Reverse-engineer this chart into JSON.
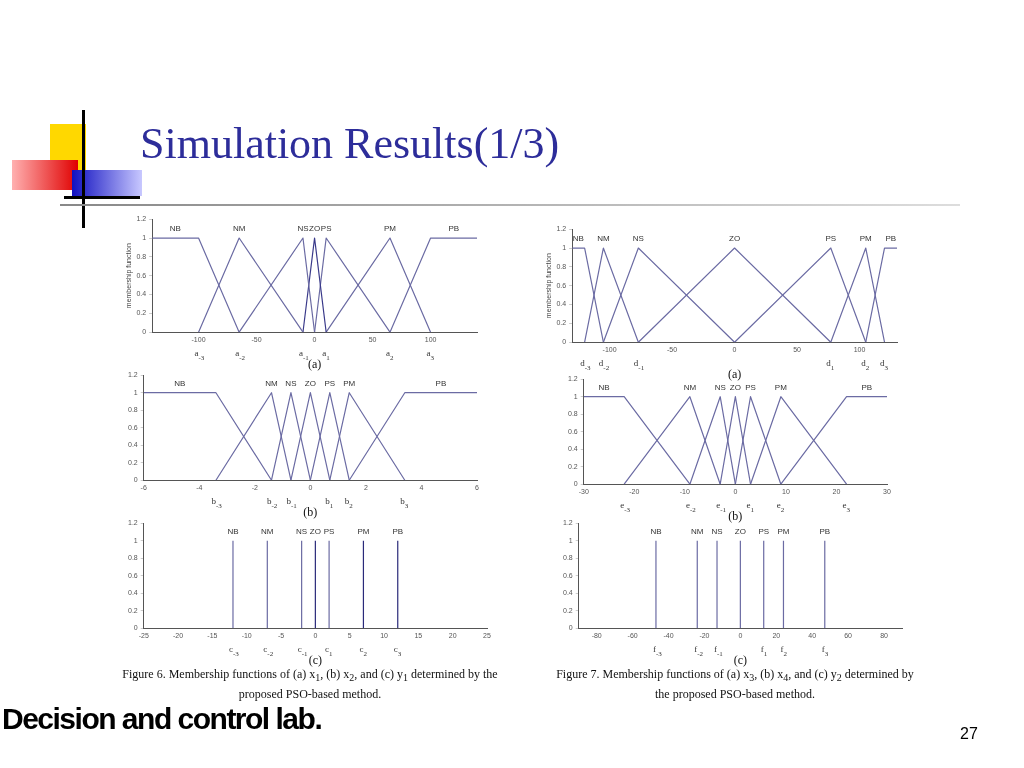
{
  "chart_data": [
    {
      "type": "line",
      "title": "Simulation Results(1/3)",
      "xlabel": "(a)",
      "ylabel": "membership function",
      "xlim": [
        -140,
        140
      ],
      "xticks": [
        -100,
        -50,
        0,
        50,
        100
      ],
      "ylim": [
        0,
        1.2
      ],
      "yticks": [
        0,
        0.2,
        0.4,
        0.6,
        0.8,
        1,
        1.2
      ],
      "series": [
        {
          "name": "NB",
          "color": "#6b6ba3",
          "x": [
            -140,
            -100,
            -65
          ],
          "values": [
            1,
            1,
            0
          ]
        },
        {
          "name": "NM",
          "color": "#6b6ba3",
          "x": [
            -100,
            -65,
            -10
          ],
          "values": [
            0,
            1,
            0
          ]
        },
        {
          "name": "NS",
          "color": "#6b6ba3",
          "x": [
            -65,
            -10,
            0
          ],
          "values": [
            0,
            1,
            0
          ]
        },
        {
          "name": "ZO",
          "color": "#3a3a8a",
          "x": [
            -10,
            0,
            10
          ],
          "values": [
            0,
            1,
            0
          ]
        },
        {
          "name": "PS",
          "color": "#6b6ba3",
          "x": [
            0,
            10,
            65
          ],
          "values": [
            0,
            1,
            0
          ]
        },
        {
          "name": "PM",
          "color": "#6b6ba3",
          "x": [
            10,
            65,
            100
          ],
          "values": [
            0,
            1,
            0
          ]
        },
        {
          "name": "PB",
          "color": "#6b6ba3",
          "x": [
            65,
            100,
            140
          ],
          "values": [
            0,
            1,
            1
          ]
        }
      ],
      "annotations": [
        {
          "text": "a$_{-3}$",
          "x": -100,
          "y": 0
        },
        {
          "text": "a$_{-2}$",
          "x": -65,
          "y": 0
        },
        {
          "text": "a$_{-1}$",
          "x": -10,
          "y": 0
        },
        {
          "text": "a$_{1}$",
          "x": 10,
          "y": 0
        },
        {
          "text": "a$_{2}$",
          "x": 65,
          "y": 0
        },
        {
          "text": "a$_{3}$",
          "x": 100,
          "y": 0
        }
      ]
    },
    {
      "type": "line",
      "xlabel": "(a)",
      "ylabel": "membership function",
      "xlim": [
        -130,
        130
      ],
      "xticks": [
        -100,
        -50,
        0,
        50,
        100
      ],
      "ylim": [
        0,
        1.2
      ],
      "yticks": [
        0,
        0.2,
        0.4,
        0.6,
        0.8,
        1,
        1.2
      ],
      "series": [
        {
          "name": "NB",
          "color": "#6b6ba3",
          "x": [
            -130,
            -120,
            -105
          ],
          "values": [
            1,
            1,
            0
          ]
        },
        {
          "name": "NM",
          "color": "#6b6ba3",
          "x": [
            -120,
            -105,
            -77
          ],
          "values": [
            0,
            1,
            0
          ]
        },
        {
          "name": "NS",
          "color": "#6b6ba3",
          "x": [
            -105,
            -77,
            0
          ],
          "values": [
            0,
            1,
            0
          ]
        },
        {
          "name": "ZO",
          "color": "#6b6ba3",
          "x": [
            -77,
            0,
            77
          ],
          "values": [
            0,
            1,
            0
          ]
        },
        {
          "name": "PS",
          "color": "#6b6ba3",
          "x": [
            0,
            77,
            105
          ],
          "values": [
            0,
            1,
            0
          ]
        },
        {
          "name": "PM",
          "color": "#6b6ba3",
          "x": [
            77,
            105,
            120
          ],
          "values": [
            0,
            1,
            0
          ]
        },
        {
          "name": "PB",
          "color": "#6b6ba3",
          "x": [
            105,
            120,
            130
          ],
          "values": [
            0,
            1,
            1
          ]
        }
      ],
      "annotations": [
        {
          "text": "d$_{-3}$",
          "x": -120,
          "y": 0
        },
        {
          "text": "d$_{-2}$",
          "x": -105,
          "y": 0
        },
        {
          "text": "d$_{-1}$",
          "x": -77,
          "y": 0
        },
        {
          "text": "d$_{1}$",
          "x": 77,
          "y": 0
        },
        {
          "text": "d$_{2}$",
          "x": 105,
          "y": 0
        },
        {
          "text": "d$_{3}$",
          "x": 120,
          "y": 0
        }
      ]
    },
    {
      "type": "line",
      "xlabel": "(b)",
      "xlim": [
        -6,
        6
      ],
      "xticks": [
        -6,
        -4,
        -2,
        0,
        2,
        4,
        6
      ],
      "ylim": [
        0,
        1.2
      ],
      "yticks": [
        0,
        0.2,
        0.4,
        0.6,
        0.8,
        1,
        1.2
      ],
      "series": [
        {
          "name": "NB",
          "color": "#6b6ba3",
          "x": [
            -6,
            -3.4,
            -1.4
          ],
          "values": [
            1,
            1,
            0
          ]
        },
        {
          "name": "NM",
          "color": "#6b6ba3",
          "x": [
            -3.4,
            -1.4,
            -0.7
          ],
          "values": [
            0,
            1,
            0
          ]
        },
        {
          "name": "NS",
          "color": "#6b6ba3",
          "x": [
            -1.4,
            -0.7,
            0
          ],
          "values": [
            0,
            1,
            0
          ]
        },
        {
          "name": "ZO",
          "color": "#6b6ba3",
          "x": [
            -0.7,
            0,
            0.7
          ],
          "values": [
            0,
            1,
            0
          ]
        },
        {
          "name": "PS",
          "color": "#6b6ba3",
          "x": [
            0,
            0.7,
            1.4
          ],
          "values": [
            0,
            1,
            0
          ]
        },
        {
          "name": "PM",
          "color": "#6b6ba3",
          "x": [
            0.7,
            1.4,
            3.4
          ],
          "values": [
            0,
            1,
            0
          ]
        },
        {
          "name": "PB",
          "color": "#6b6ba3",
          "x": [
            1.4,
            3.4,
            6
          ],
          "values": [
            0,
            1,
            1
          ]
        }
      ],
      "annotations": [
        {
          "text": "b$_{-3}$",
          "x": -3.4,
          "y": 0
        },
        {
          "text": "b$_{-2}$",
          "x": -1.4,
          "y": 0
        },
        {
          "text": "b$_{-1}$",
          "x": -0.7,
          "y": 0
        },
        {
          "text": "b$_{1}$",
          "x": 0.7,
          "y": 0
        },
        {
          "text": "b$_{2}$",
          "x": 1.4,
          "y": 0
        },
        {
          "text": "b$_{3}$",
          "x": 3.4,
          "y": 0
        }
      ]
    },
    {
      "type": "line",
      "xlabel": "(b)",
      "xlim": [
        -30,
        30
      ],
      "xticks": [
        -30,
        -20,
        -10,
        0,
        10,
        20,
        30
      ],
      "ylim": [
        0,
        1.2
      ],
      "yticks": [
        0,
        0.2,
        0.4,
        0.6,
        0.8,
        1,
        1.2
      ],
      "series": [
        {
          "name": "NB",
          "color": "#6b6ba3",
          "x": [
            -30,
            -22,
            -9
          ],
          "values": [
            1,
            1,
            0
          ]
        },
        {
          "name": "NM",
          "color": "#6b6ba3",
          "x": [
            -22,
            -9,
            -3
          ],
          "values": [
            0,
            1,
            0
          ]
        },
        {
          "name": "NS",
          "color": "#6b6ba3",
          "x": [
            -9,
            -3,
            0
          ],
          "values": [
            0,
            1,
            0
          ]
        },
        {
          "name": "ZO",
          "color": "#6b6ba3",
          "x": [
            -3,
            0,
            3
          ],
          "values": [
            0,
            1,
            0
          ]
        },
        {
          "name": "PS",
          "color": "#6b6ba3",
          "x": [
            0,
            3,
            9
          ],
          "values": [
            0,
            1,
            0
          ]
        },
        {
          "name": "PM",
          "color": "#6b6ba3",
          "x": [
            3,
            9,
            22
          ],
          "values": [
            0,
            1,
            0
          ]
        },
        {
          "name": "PB",
          "color": "#6b6ba3",
          "x": [
            9,
            22,
            30
          ],
          "values": [
            0,
            1,
            1
          ]
        }
      ],
      "annotations": [
        {
          "text": "e$_{-3}$",
          "x": -22,
          "y": 0
        },
        {
          "text": "e$_{-2}$",
          "x": -9,
          "y": 0
        },
        {
          "text": "e$_{-1}$",
          "x": -3,
          "y": 0
        },
        {
          "text": "e$_{1}$",
          "x": 3,
          "y": 0
        },
        {
          "text": "e$_{2}$",
          "x": 9,
          "y": 0
        },
        {
          "text": "e$_{3}$",
          "x": 22,
          "y": 0
        }
      ]
    },
    {
      "type": "line",
      "xlabel": "(c)",
      "xlim": [
        -25,
        25
      ],
      "xticks": [
        -25,
        -20,
        -15,
        -10,
        -5,
        0,
        5,
        10,
        15,
        20,
        25
      ],
      "ylim": [
        0,
        1.2
      ],
      "yticks": [
        0,
        0.2,
        0.4,
        0.6,
        0.8,
        1,
        1.2
      ],
      "series": [
        {
          "name": "NB",
          "color": "#6b6ba3",
          "x": [
            -12,
            -12
          ],
          "values": [
            0,
            1
          ]
        },
        {
          "name": "NM",
          "color": "#6b6ba3",
          "x": [
            -7,
            -7
          ],
          "values": [
            0,
            1
          ]
        },
        {
          "name": "NS",
          "color": "#6b6ba3",
          "x": [
            -2,
            -2
          ],
          "values": [
            0,
            1
          ]
        },
        {
          "name": "ZO",
          "color": "#2a2a7a",
          "x": [
            0,
            0
          ],
          "values": [
            0,
            1
          ]
        },
        {
          "name": "PS",
          "color": "#6b6ba3",
          "x": [
            2,
            2
          ],
          "values": [
            0,
            1
          ]
        },
        {
          "name": "PM",
          "color": "#2a2a7a",
          "x": [
            7,
            7
          ],
          "values": [
            0,
            1
          ]
        },
        {
          "name": "PB",
          "color": "#2a2a7a",
          "x": [
            12,
            12
          ],
          "values": [
            0,
            1
          ]
        }
      ],
      "annotations": [
        {
          "text": "c$_{-3}$",
          "x": -12,
          "y": 0
        },
        {
          "text": "c$_{-2}$",
          "x": -7,
          "y": 0
        },
        {
          "text": "c$_{-1}$",
          "x": -2,
          "y": 0
        },
        {
          "text": "c$_{1}$",
          "x": 2,
          "y": 0
        },
        {
          "text": "c$_{2}$",
          "x": 7,
          "y": 0
        },
        {
          "text": "c$_{3}$",
          "x": 12,
          "y": 0
        },
        "Figure 6. Membership functions of (a) x$_{1}$, (b) x$_{2}$, and (c) y$_{1}$ determined by the proposed PSO-based method.",
        "Decision and control lab."
      ]
    },
    {
      "type": "line",
      "xlabel": "(c)",
      "xlim": [
        -90,
        90
      ],
      "xticks": [
        -80,
        -60,
        -40,
        -20,
        0,
        20,
        40,
        60,
        80
      ],
      "ylim": [
        0,
        1.2
      ],
      "yticks": [
        0,
        0.2,
        0.4,
        0.6,
        0.8,
        1,
        1.2
      ],
      "series": [
        {
          "name": "NB",
          "color": "#6b6ba3",
          "x": [
            -47,
            -47
          ],
          "values": [
            0,
            1
          ]
        },
        {
          "name": "NM",
          "color": "#6b6ba3",
          "x": [
            -24,
            -24
          ],
          "values": [
            0,
            1
          ]
        },
        {
          "name": "NS",
          "color": "#6b6ba3",
          "x": [
            -13,
            -13
          ],
          "values": [
            0,
            1
          ]
        },
        {
          "name": "ZO",
          "color": "#6b6ba3",
          "x": [
            0,
            0
          ],
          "values": [
            0,
            1
          ]
        },
        {
          "name": "PS",
          "color": "#6b6ba3",
          "x": [
            13,
            13
          ],
          "values": [
            0,
            1
          ]
        },
        {
          "name": "PM",
          "color": "#6b6ba3",
          "x": [
            24,
            24
          ],
          "values": [
            0,
            1
          ]
        },
        {
          "name": "PB",
          "color": "#6b6ba3",
          "x": [
            47,
            47
          ],
          "values": [
            0,
            1
          ]
        }
      ],
      "annotations": [
        {
          "text": "f$_{-3}$",
          "x": -47,
          "y": 0
        },
        {
          "text": "f$_{-2}$",
          "x": -24,
          "y": 0
        },
        {
          "text": "f$_{-1}$",
          "x": -13,
          "y": 0
        },
        {
          "text": "f$_{1}$",
          "x": 13,
          "y": 0
        },
        {
          "text": "f$_{2}$",
          "x": 24,
          "y": 0
        },
        {
          "text": "f$_{3}$",
          "x": 47,
          "y": 0
        },
        "Figure 7. Membership functions of (a) x$_{3}$, (b) x$_{4}$, and (c) y$_{2}$ determined by the proposed PSO-based method.",
        "27"
      ]
    }
  ]
}
